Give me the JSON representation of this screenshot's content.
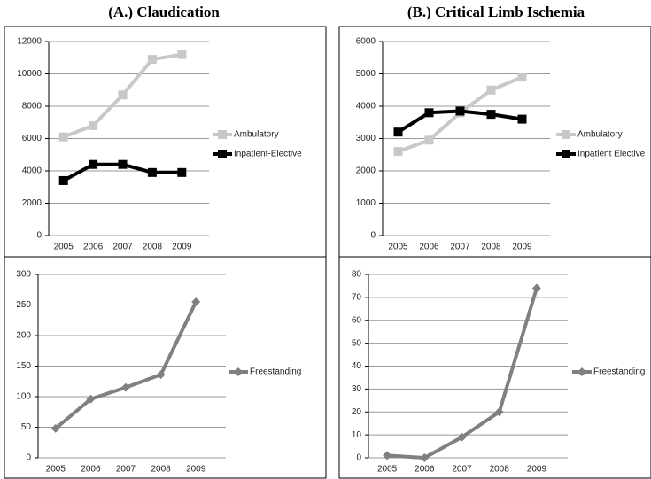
{
  "chart_data": [
    {
      "type": "line",
      "title": "(A.) Claudication",
      "categories": [
        "2005",
        "2006",
        "2007",
        "2008",
        "2009"
      ],
      "series": [
        {
          "name": "Ambulatory",
          "color": "#c8c8c8",
          "marker": "square",
          "values": [
            6100,
            6800,
            8700,
            10900,
            11200
          ]
        },
        {
          "name": "Inpatient-Elective",
          "color": "#000000",
          "marker": "square",
          "values": [
            3400,
            4400,
            4400,
            3900,
            3900
          ]
        }
      ],
      "ylim": [
        0,
        12000
      ],
      "yticks": [
        0,
        2000,
        4000,
        6000,
        8000,
        10000,
        12000
      ],
      "grid": true,
      "legend": "right"
    },
    {
      "type": "line",
      "title": "(B.) Critical Limb Ischemia",
      "categories": [
        "2005",
        "2006",
        "2007",
        "2008",
        "2009"
      ],
      "series": [
        {
          "name": "Ambulatory",
          "color": "#c8c8c8",
          "marker": "square",
          "values": [
            2600,
            2950,
            3800,
            4500,
            4900
          ]
        },
        {
          "name": "Inpatient Elective",
          "color": "#000000",
          "marker": "square",
          "values": [
            3200,
            3800,
            3850,
            3750,
            3600
          ]
        }
      ],
      "ylim": [
        0,
        6000
      ],
      "yticks": [
        0,
        1000,
        2000,
        3000,
        4000,
        5000,
        6000
      ],
      "grid": true,
      "legend": "right"
    },
    {
      "type": "line",
      "categories": [
        "2005",
        "2006",
        "2007",
        "2008",
        "2009"
      ],
      "series": [
        {
          "name": "Freestanding",
          "color": "#808080",
          "marker": "diamond",
          "values": [
            48,
            96,
            115,
            136,
            255
          ]
        }
      ],
      "ylim": [
        0,
        300
      ],
      "yticks": [
        0,
        50,
        100,
        150,
        200,
        250,
        300
      ],
      "grid": true,
      "legend": "right"
    },
    {
      "type": "line",
      "categories": [
        "2005",
        "2006",
        "2007",
        "2008",
        "2009"
      ],
      "series": [
        {
          "name": "Freestanding",
          "color": "#808080",
          "marker": "diamond",
          "values": [
            1,
            0,
            9,
            20,
            74
          ]
        }
      ],
      "ylim": [
        0,
        80
      ],
      "yticks": [
        0,
        10,
        20,
        30,
        40,
        50,
        60,
        70,
        80
      ],
      "grid": true,
      "legend": "right"
    }
  ]
}
